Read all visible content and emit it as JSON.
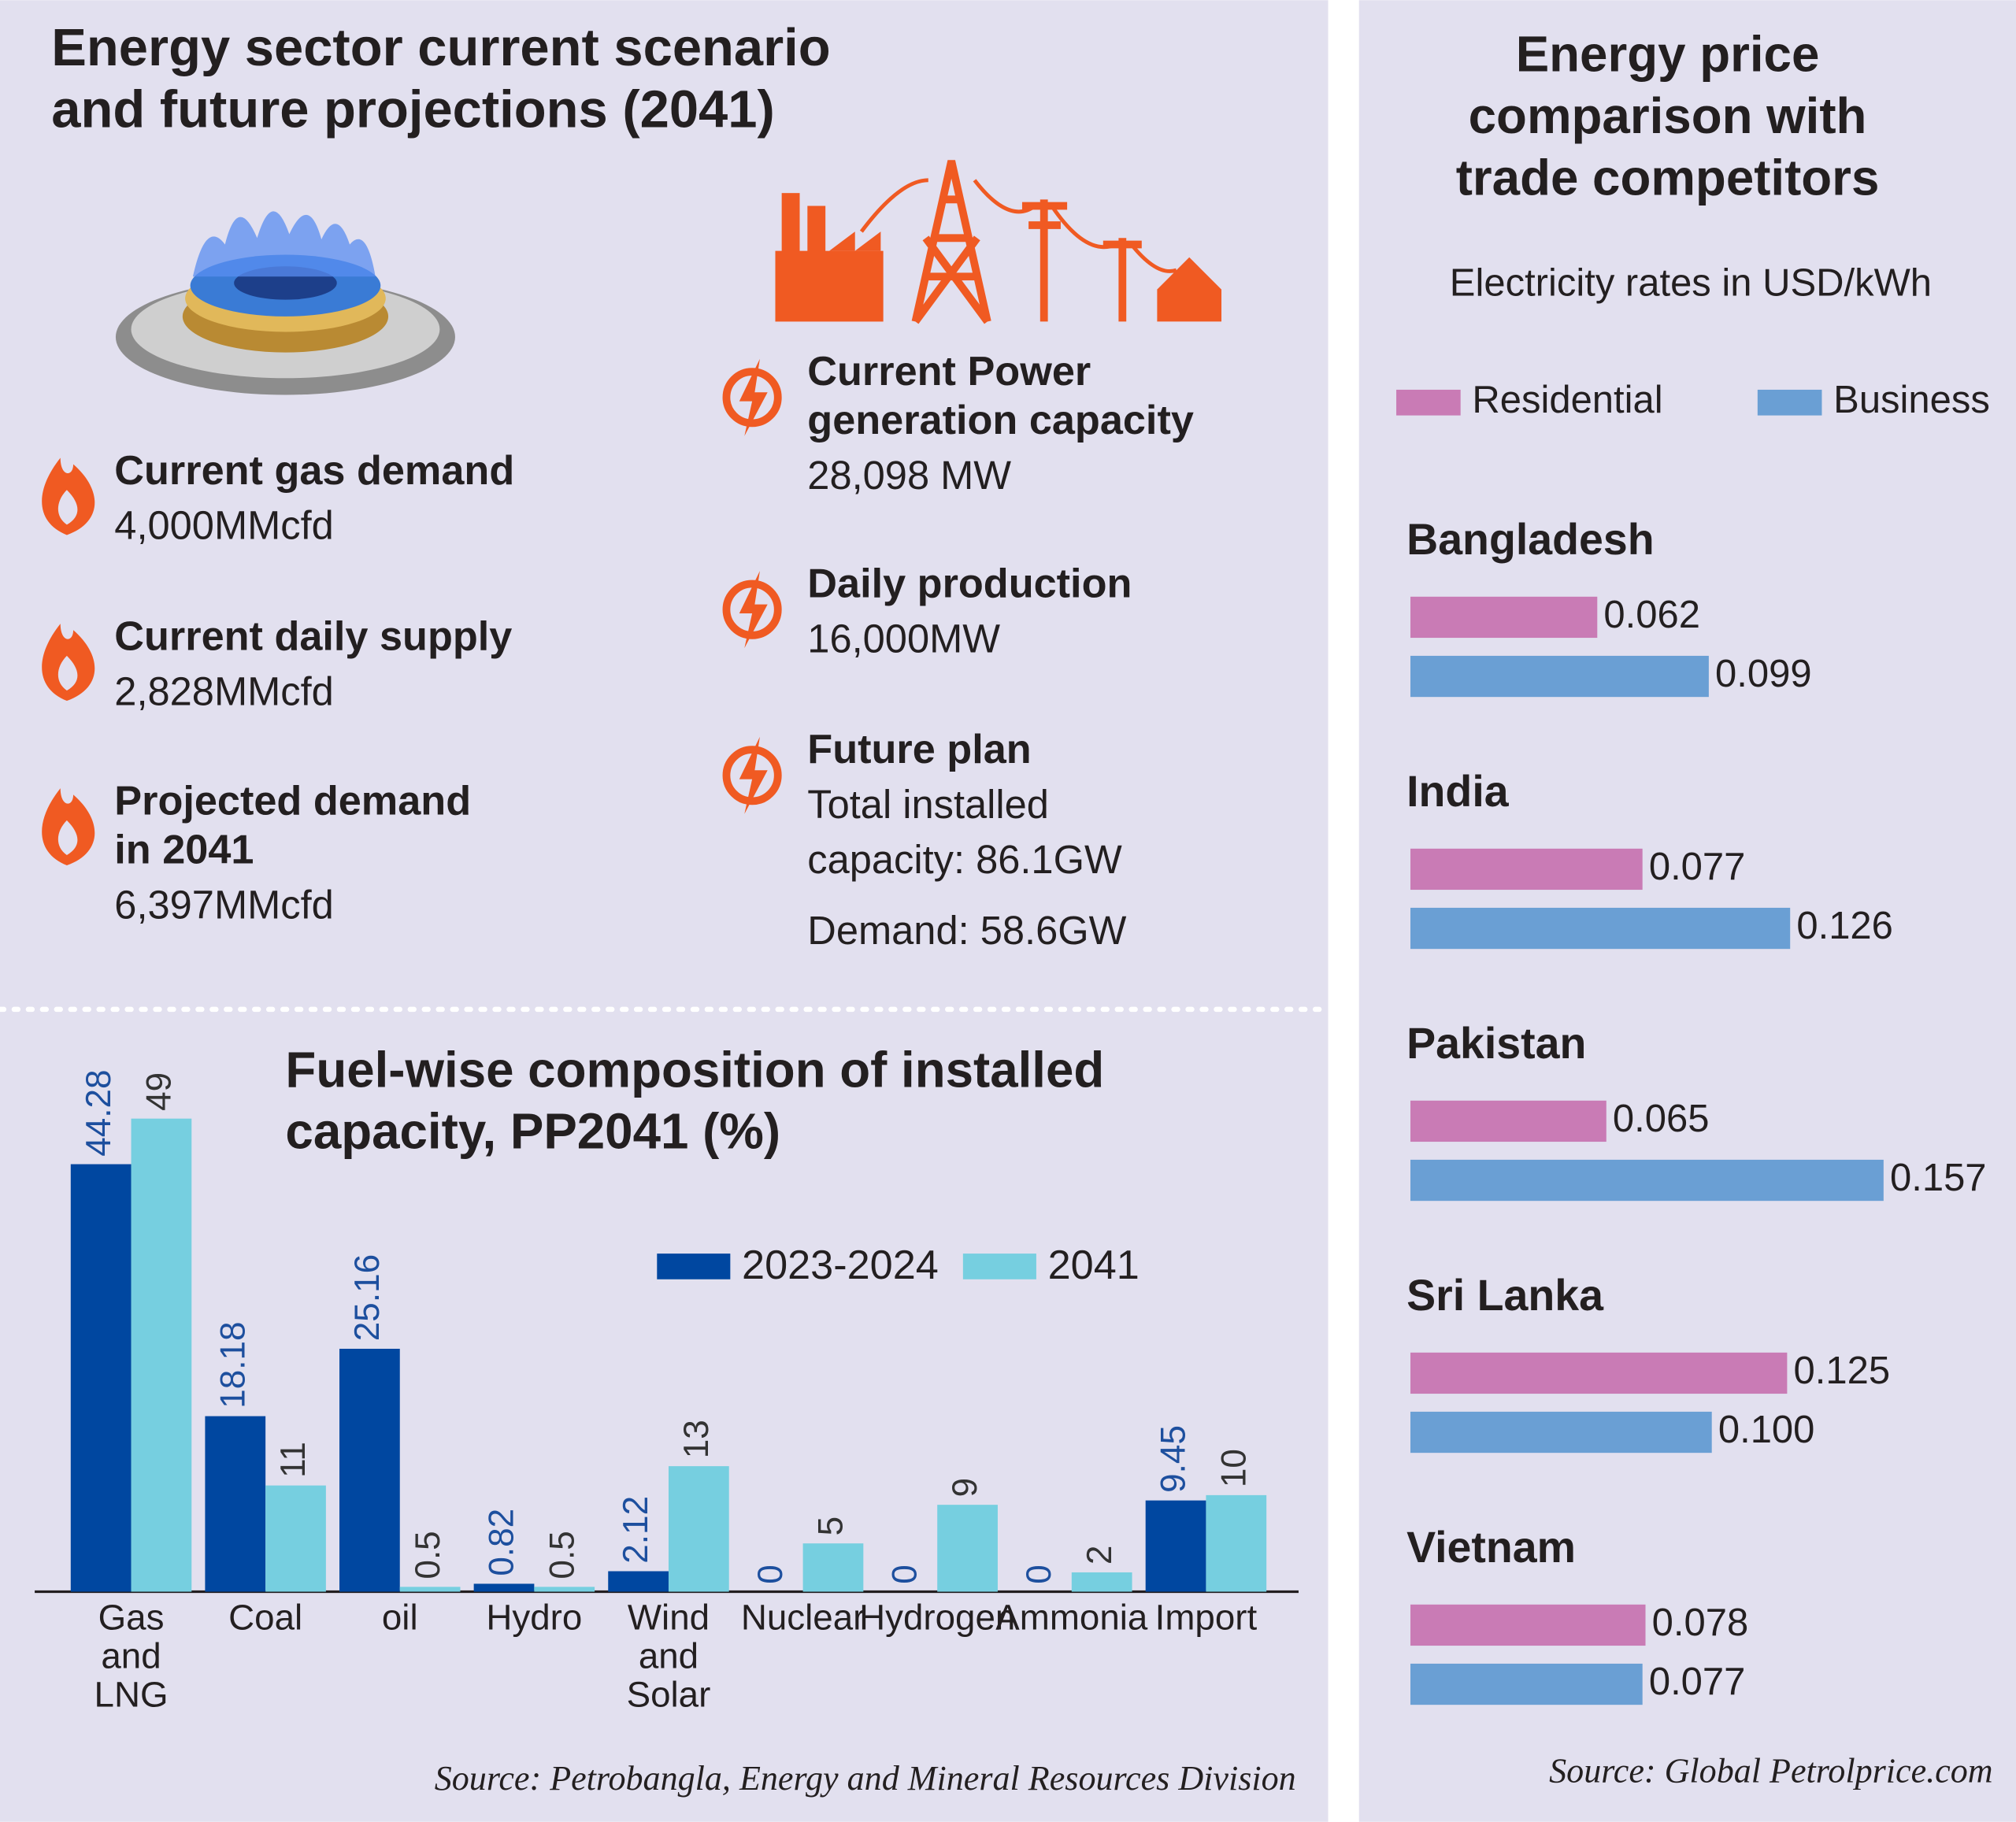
{
  "title": [
    "Energy sector current scenario",
    "and future projections (2041)"
  ],
  "gas": [
    {
      "label": [
        "Current gas demand"
      ],
      "value": [
        "4,000MMcfd"
      ]
    },
    {
      "label": [
        "Current daily supply"
      ],
      "value": [
        "2,828MMcfd"
      ]
    },
    {
      "label": [
        "Projected demand",
        "in 2041"
      ],
      "value": [
        "6,397MMcfd"
      ]
    }
  ],
  "power": [
    {
      "label": [
        "Current Power",
        "generation capacity"
      ],
      "value": [
        "28,098 MW"
      ]
    },
    {
      "label": [
        "Daily production"
      ],
      "value": [
        "16,000MW"
      ]
    },
    {
      "label": [
        "Future plan"
      ],
      "value": [
        "Total installed",
        "capacity: 86.1GW",
        "Demand:  58.6GW"
      ]
    }
  ],
  "chart_data": [
    {
      "type": "bar",
      "title": [
        "Fuel-wise composition of installed",
        "capacity, PP2041 (%)"
      ],
      "categories": [
        "Gas and LNG",
        "Coal",
        "oil",
        "Hydro",
        "Wind and Solar",
        "Nuclear",
        "Hydrogen",
        "Ammonia",
        "Import"
      ],
      "series": [
        {
          "name": "2023-2024",
          "color": "#0047a0",
          "label_color": "#1d4f9e",
          "values": [
            44.28,
            18.18,
            25.16,
            0.82,
            2.12,
            0,
            0,
            0,
            9.45
          ]
        },
        {
          "name": "2041",
          "color": "#76cfe0",
          "label_color": "#333333",
          "values": [
            49,
            11,
            0.5,
            0.5,
            13,
            5,
            9,
            2,
            10
          ]
        }
      ],
      "source": "Source: Petrobangla, Energy and Mineral Resources Division"
    },
    {
      "type": "barh",
      "title": [
        "Energy price",
        "comparison with",
        "trade competitors"
      ],
      "subtitle": "Electricity rates in USD/kWh",
      "categories": [
        "Bangladesh",
        "India",
        "Pakistan",
        "Sri Lanka",
        "Vietnam"
      ],
      "series": [
        {
          "name": "Residential",
          "color": "#c97bb5",
          "values": [
            0.062,
            0.077,
            0.065,
            0.125,
            0.078
          ]
        },
        {
          "name": "Business",
          "color": "#6a9fd4",
          "values": [
            0.099,
            0.126,
            0.157,
            0.1,
            0.077
          ],
          "value_labels": [
            "0.099",
            "0.126",
            "0.157",
            "0.100",
            "0.077"
          ]
        }
      ],
      "source": "Source: Global Petrolprice.com"
    }
  ]
}
